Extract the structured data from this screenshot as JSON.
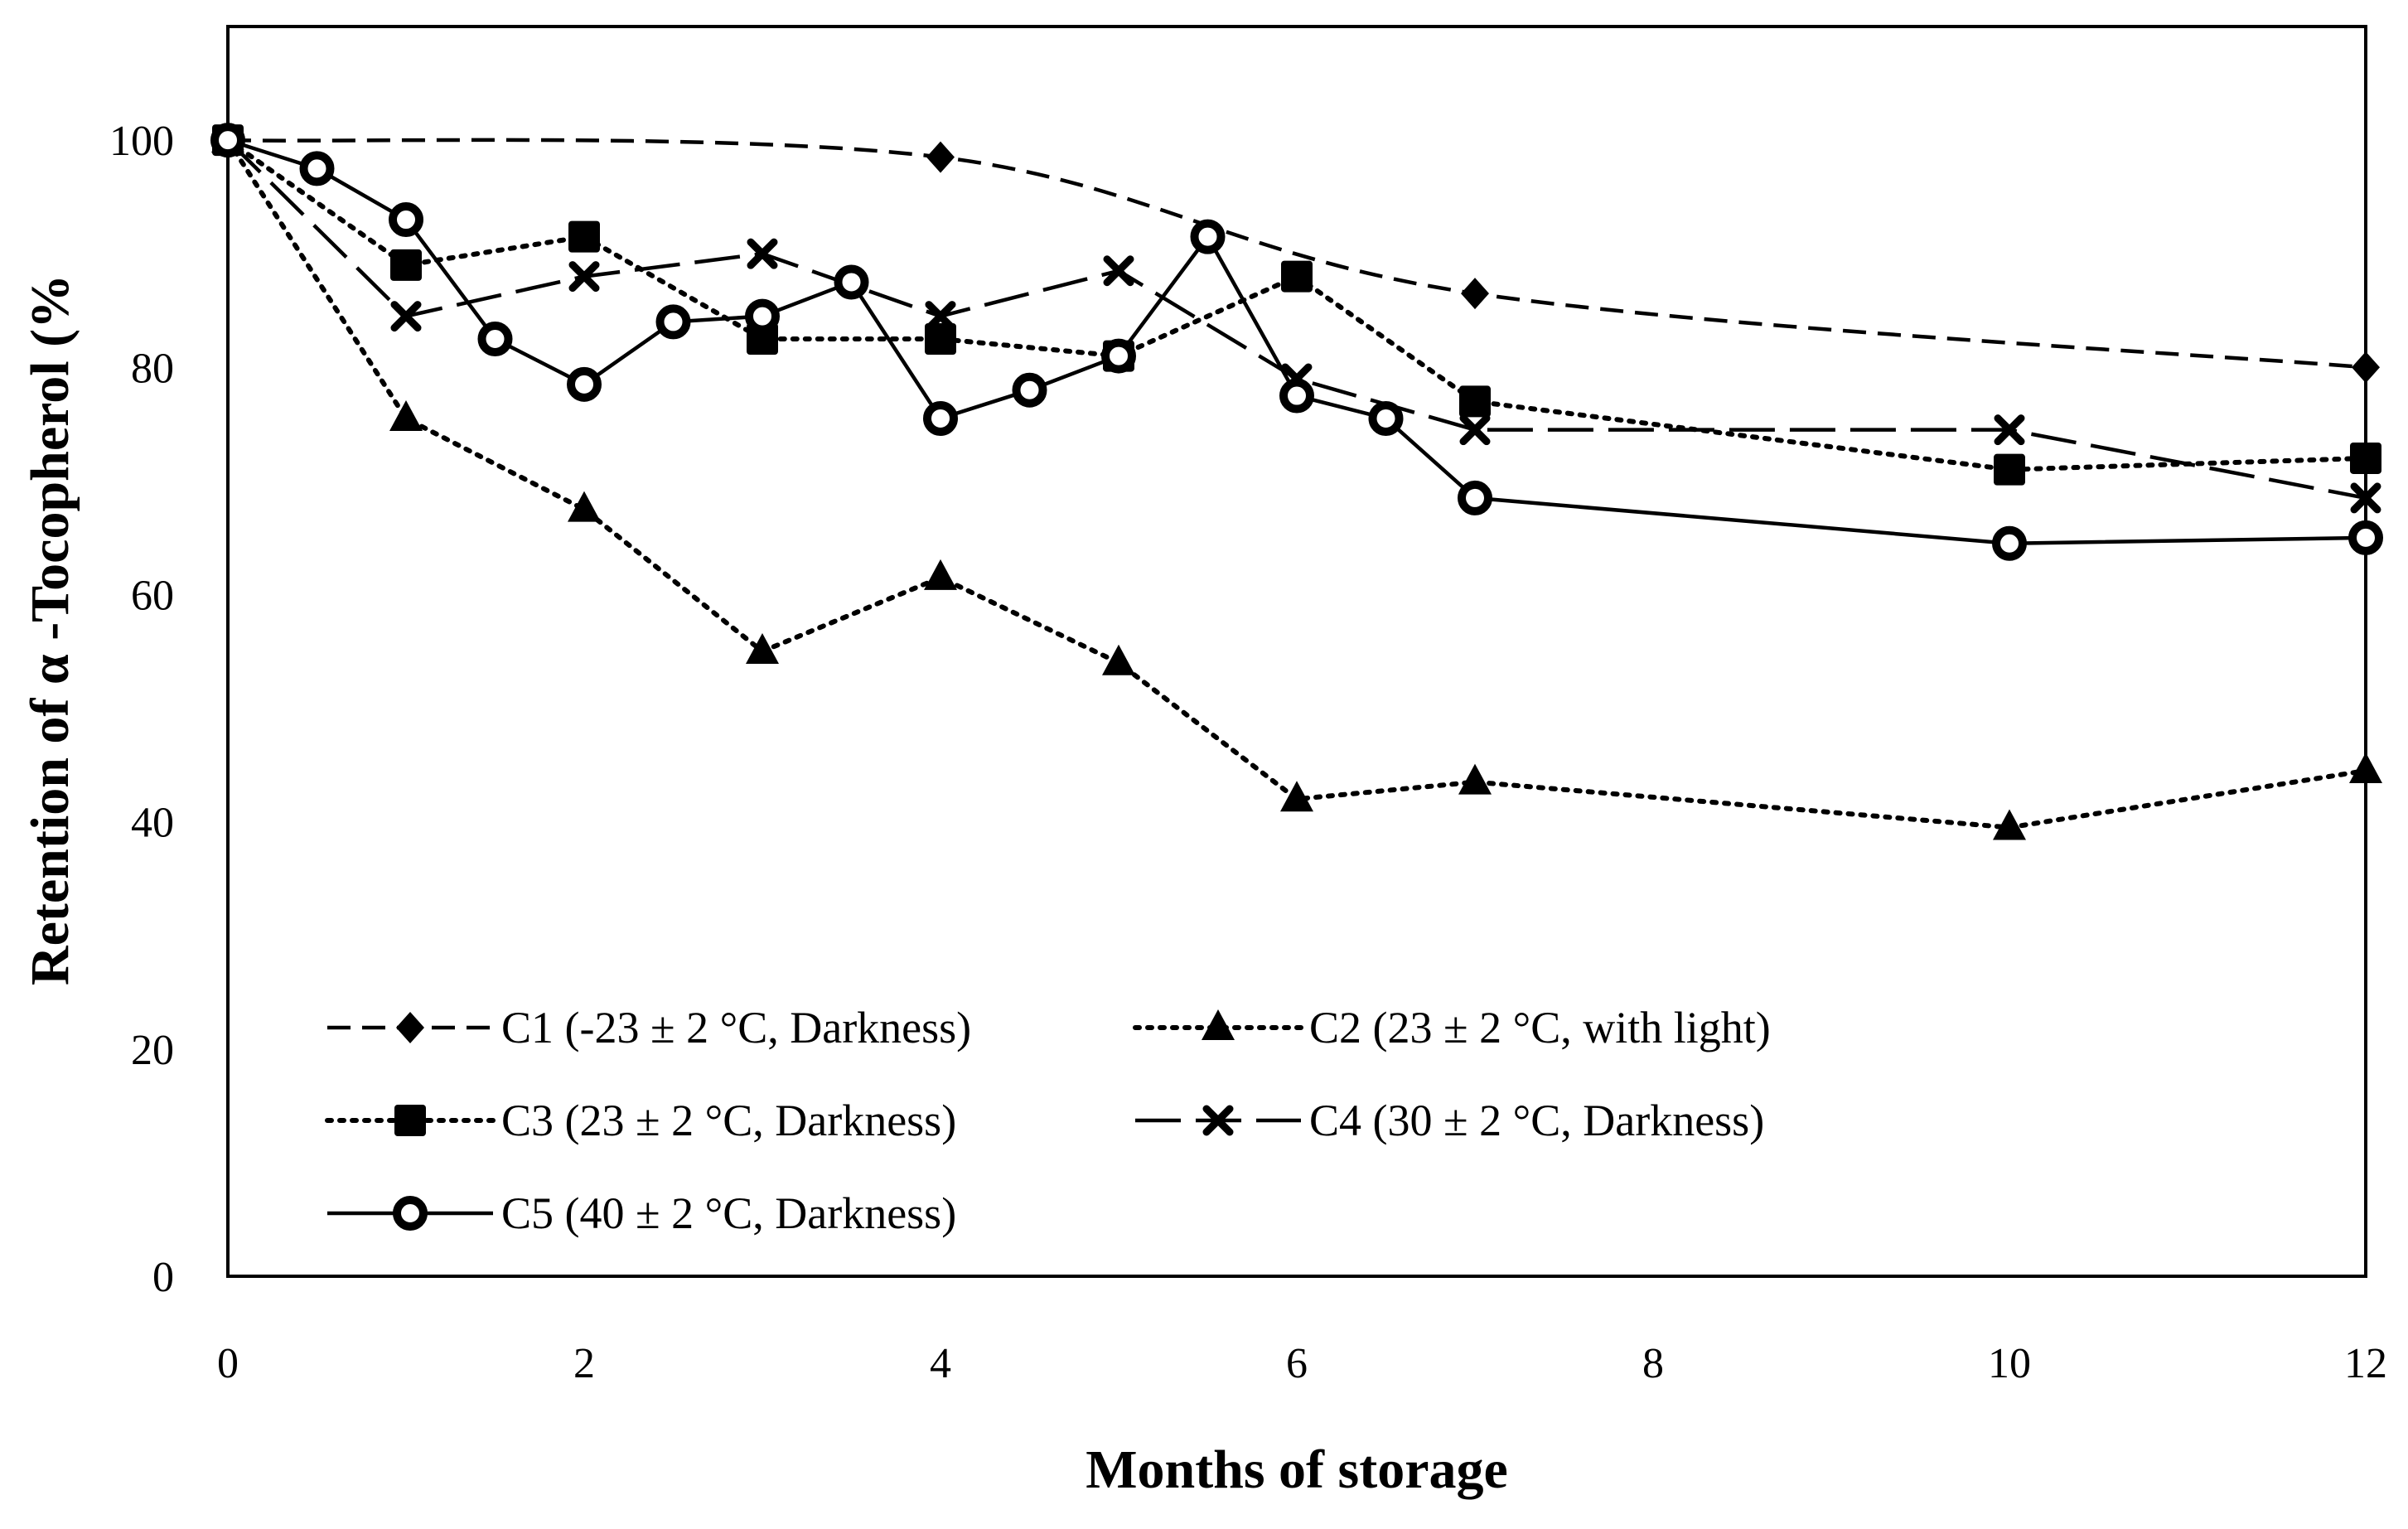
{
  "chart_data": {
    "type": "line",
    "title": "",
    "xlabel": "Months of storage",
    "ylabel": "Retention of α -Tocopherol (%",
    "xlim": [
      0,
      12
    ],
    "ylim": [
      0,
      110
    ],
    "xticks": [
      0,
      2,
      4,
      6,
      8,
      10,
      12
    ],
    "yticks": [
      0,
      20,
      40,
      60,
      80,
      100
    ],
    "grid": false,
    "legend_position": "bottom-left",
    "series": [
      {
        "name": "C1 (-23 ± 2 °C, Darkness)",
        "marker": "diamond",
        "dash": "dashed",
        "smooth": true,
        "x": [
          0,
          4,
          7,
          12
        ],
        "values": [
          100,
          98.5,
          86.5,
          80
        ]
      },
      {
        "name": "C2 (23 ± 2 °C, with light)",
        "marker": "triangle",
        "dash": "dotted",
        "smooth": false,
        "x": [
          0,
          1,
          2,
          3,
          4,
          5,
          6,
          7,
          10,
          12
        ],
        "values": [
          100,
          75.5,
          67.5,
          55,
          61.5,
          54,
          42,
          43.5,
          39.5,
          44.5
        ]
      },
      {
        "name": "C3 (23 ± 2 °C, Darkness)",
        "marker": "square",
        "dash": "dotted",
        "smooth": false,
        "x": [
          0,
          1,
          2,
          3,
          4,
          5,
          6,
          7,
          10,
          12
        ],
        "values": [
          100,
          89,
          91.5,
          82.5,
          82.5,
          81,
          88,
          77,
          71,
          72
        ]
      },
      {
        "name": "C4 (30 ± 2 °C, Darkness)",
        "marker": "x",
        "dash": "longdash",
        "smooth": false,
        "x": [
          0,
          1,
          2,
          3,
          4,
          5,
          6,
          7,
          10,
          12
        ],
        "values": [
          100,
          84.5,
          88,
          90,
          84.5,
          88.5,
          79,
          74.5,
          74.5,
          68.5
        ]
      },
      {
        "name": "C5 (40 ± 2 °C, Darkness)",
        "marker": "circle",
        "dash": "solid",
        "smooth": false,
        "x": [
          0,
          0.5,
          1,
          1.5,
          2,
          2.5,
          3,
          3.5,
          4,
          4.5,
          5,
          5.5,
          6,
          6.5,
          7,
          10,
          12
        ],
        "values": [
          100,
          97.5,
          93,
          82.5,
          78.5,
          84,
          84.5,
          87.5,
          75.5,
          78,
          81,
          91.5,
          77.5,
          75.5,
          68.5,
          64.5,
          65
        ]
      }
    ]
  }
}
